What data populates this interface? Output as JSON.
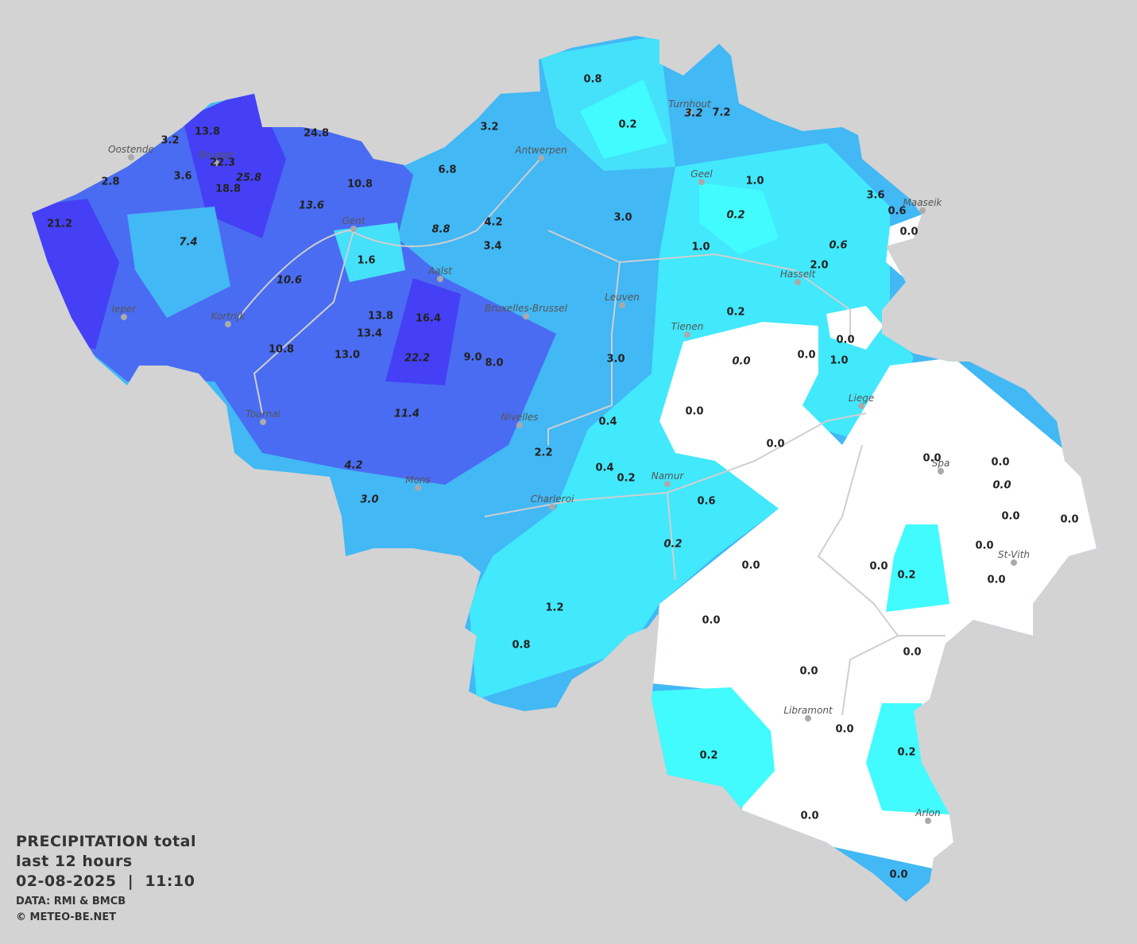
{
  "title": {
    "line1": "PRECIPITATION total",
    "line2": "last 12 hours",
    "line3": "02-08-2025  |  11:10",
    "source": "DATA: RMI & BMCB",
    "credit": "© METEO-BE.NET"
  },
  "cities": [
    "Oostende",
    "Brugge",
    "Gent",
    "Antwerpen",
    "Turnhout",
    "Geel",
    "Maaseik",
    "Hasselt",
    "Ieper",
    "Kortrijk",
    "Aalst",
    "Bruxelles-Brussel",
    "Leuven",
    "Tienen",
    "Liege",
    "Tournai",
    "Nivelles",
    "Namur",
    "Mons",
    "Charleroi",
    "Spa",
    "St-Vith",
    "Libramont",
    "Arlon"
  ],
  "readings": [
    "0.8",
    "0.2",
    "3.2",
    "7.2",
    "13.8",
    "24.8",
    "3.2",
    "3.2",
    "22.3",
    "25.8",
    "3.6",
    "2.8",
    "18.8",
    "10.8",
    "6.8",
    "1.0",
    "3.6",
    "0.6",
    "13.6",
    "0.2",
    "4.2",
    "3.0",
    "0.0",
    "21.2",
    "8.8",
    "7.4",
    "3.4",
    "1.0",
    "0.6",
    "2.0",
    "1.6",
    "10.6",
    "0.2",
    "13.8",
    "16.4",
    "13.4",
    "0.0",
    "10.8",
    "13.0",
    "22.2",
    "9.0",
    "8.0",
    "3.0",
    "0.0",
    "0.0",
    "1.0",
    "0.0",
    "11.4",
    "0.4",
    "0.0",
    "2.2",
    "0.0",
    "0.0",
    "4.2",
    "0.4",
    "0.2",
    "0.0",
    "3.0",
    "0.6",
    "0.0",
    "0.0",
    "0.2",
    "0.0",
    "0.0",
    "0.0",
    "0.2",
    "0.0",
    "1.2",
    "0.0",
    "0.8",
    "0.0",
    "0.0",
    "0.0",
    "0.2",
    "0.2",
    "0.0",
    "0.0"
  ]
}
